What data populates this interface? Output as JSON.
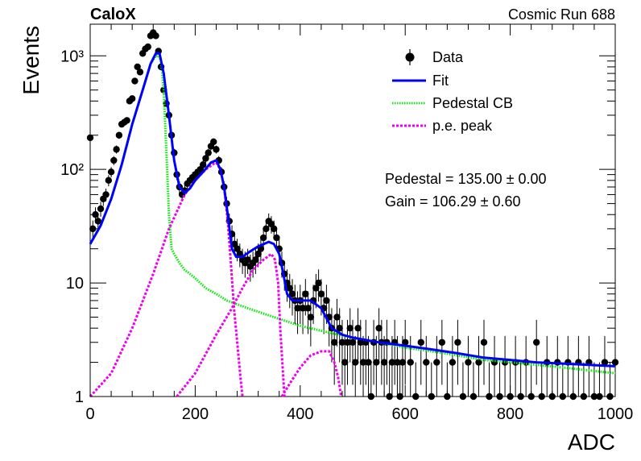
{
  "header": {
    "experiment": "CaloX",
    "run": "Cosmic Run 688"
  },
  "stats": {
    "pedestal": "Pedestal = 135.00 ± 0.00",
    "gain": "Gain = 106.29 ± 0.60"
  },
  "colors": {
    "data": "#000000",
    "fit": "#0000ff",
    "pedestal": "#00ee00",
    "pe": "#ee00ee"
  },
  "chart_data": {
    "type": "scatter",
    "xlabel": "ADC",
    "ylabel": "Events",
    "xlim": [
      0,
      1000
    ],
    "ylim": [
      1,
      1900
    ],
    "yscale": "log",
    "grid": false,
    "legend_position": "top-right",
    "x_ticks": [
      0,
      200,
      400,
      600,
      800,
      1000
    ],
    "y_ticks": [
      {
        "value": 1,
        "label": "1"
      },
      {
        "value": 10,
        "label": "10"
      },
      {
        "value": 100,
        "label": "10²"
      },
      {
        "value": 1000,
        "label": "10³"
      }
    ],
    "series": [
      {
        "name": "Data",
        "kind": "points-with-errors",
        "points": [
          [
            0,
            190
          ],
          [
            5,
            30
          ],
          [
            10,
            40
          ],
          [
            15,
            35
          ],
          [
            20,
            45
          ],
          [
            25,
            55
          ],
          [
            30,
            60
          ],
          [
            35,
            80
          ],
          [
            40,
            95
          ],
          [
            45,
            120
          ],
          [
            50,
            150
          ],
          [
            55,
            200
          ],
          [
            60,
            250
          ],
          [
            65,
            260
          ],
          [
            70,
            270
          ],
          [
            75,
            400
          ],
          [
            80,
            420
          ],
          [
            85,
            600
          ],
          [
            90,
            800
          ],
          [
            95,
            720
          ],
          [
            100,
            1050
          ],
          [
            105,
            1150
          ],
          [
            110,
            1200
          ],
          [
            115,
            1500
          ],
          [
            120,
            1600
          ],
          [
            125,
            1500
          ],
          [
            130,
            1100
          ],
          [
            135,
            800
          ],
          [
            140,
            500
          ],
          [
            145,
            380
          ],
          [
            150,
            300
          ],
          [
            155,
            200
          ],
          [
            160,
            140
          ],
          [
            165,
            90
          ],
          [
            170,
            70
          ],
          [
            175,
            60
          ],
          [
            180,
            65
          ],
          [
            185,
            75
          ],
          [
            190,
            80
          ],
          [
            195,
            85
          ],
          [
            200,
            90
          ],
          [
            205,
            95
          ],
          [
            210,
            100
          ],
          [
            215,
            110
          ],
          [
            220,
            125
          ],
          [
            225,
            140
          ],
          [
            230,
            160
          ],
          [
            235,
            175
          ],
          [
            240,
            150
          ],
          [
            245,
            120
          ],
          [
            250,
            95
          ],
          [
            255,
            70
          ],
          [
            260,
            50
          ],
          [
            265,
            35
          ],
          [
            270,
            27
          ],
          [
            275,
            22
          ],
          [
            280,
            20
          ],
          [
            285,
            18
          ],
          [
            290,
            16
          ],
          [
            295,
            15
          ],
          [
            300,
            16
          ],
          [
            305,
            14
          ],
          [
            310,
            15
          ],
          [
            315,
            16
          ],
          [
            320,
            18
          ],
          [
            325,
            20
          ],
          [
            330,
            25
          ],
          [
            335,
            30
          ],
          [
            340,
            35
          ],
          [
            345,
            33
          ],
          [
            350,
            30
          ],
          [
            355,
            25
          ],
          [
            360,
            20
          ],
          [
            365,
            15
          ],
          [
            370,
            12
          ],
          [
            375,
            10
          ],
          [
            380,
            9
          ],
          [
            385,
            8
          ],
          [
            390,
            7
          ],
          [
            395,
            6
          ],
          [
            400,
            7
          ],
          [
            405,
            6
          ],
          [
            410,
            8
          ],
          [
            415,
            6
          ],
          [
            420,
            5
          ],
          [
            425,
            7
          ],
          [
            430,
            9
          ],
          [
            435,
            10
          ],
          [
            440,
            8
          ],
          [
            445,
            6
          ],
          [
            450,
            7
          ],
          [
            455,
            5
          ],
          [
            460,
            4
          ],
          [
            465,
            3
          ],
          [
            470,
            5
          ],
          [
            475,
            4
          ],
          [
            480,
            3
          ],
          [
            485,
            2
          ],
          [
            490,
            3
          ],
          [
            495,
            4
          ],
          [
            500,
            3
          ],
          [
            505,
            2
          ],
          [
            510,
            4
          ],
          [
            515,
            3
          ],
          [
            520,
            2
          ],
          [
            525,
            3
          ],
          [
            530,
            2
          ],
          [
            535,
            1
          ],
          [
            540,
            3
          ],
          [
            545,
            2
          ],
          [
            550,
            4
          ],
          [
            555,
            3
          ],
          [
            560,
            2
          ],
          [
            565,
            3
          ],
          [
            570,
            1
          ],
          [
            575,
            2
          ],
          [
            580,
            3
          ],
          [
            585,
            2
          ],
          [
            590,
            1
          ],
          [
            595,
            2
          ],
          [
            600,
            3
          ],
          [
            610,
            2
          ],
          [
            620,
            1
          ],
          [
            630,
            3
          ],
          [
            640,
            2
          ],
          [
            650,
            1
          ],
          [
            660,
            2
          ],
          [
            670,
            3
          ],
          [
            680,
            1
          ],
          [
            690,
            2
          ],
          [
            700,
            3
          ],
          [
            710,
            1
          ],
          [
            720,
            2
          ],
          [
            730,
            1
          ],
          [
            740,
            2
          ],
          [
            750,
            3
          ],
          [
            760,
            1
          ],
          [
            770,
            2
          ],
          [
            780,
            1
          ],
          [
            790,
            2
          ],
          [
            800,
            1
          ],
          [
            810,
            2
          ],
          [
            820,
            1
          ],
          [
            830,
            2
          ],
          [
            840,
            1
          ],
          [
            850,
            3
          ],
          [
            860,
            1
          ],
          [
            870,
            2
          ],
          [
            880,
            1
          ],
          [
            890,
            2
          ],
          [
            900,
            1
          ],
          [
            910,
            2
          ],
          [
            920,
            1
          ],
          [
            930,
            2
          ],
          [
            940,
            1
          ],
          [
            950,
            2
          ],
          [
            960,
            1
          ],
          [
            970,
            1
          ],
          [
            980,
            2
          ],
          [
            990,
            1
          ],
          [
            1000,
            2
          ]
        ]
      },
      {
        "name": "Fit",
        "kind": "line",
        "style": "solid",
        "points": [
          [
            0,
            22
          ],
          [
            20,
            32
          ],
          [
            40,
            55
          ],
          [
            60,
            110
          ],
          [
            80,
            250
          ],
          [
            100,
            500
          ],
          [
            115,
            850
          ],
          [
            125,
            1050
          ],
          [
            132,
            1050
          ],
          [
            140,
            700
          ],
          [
            150,
            300
          ],
          [
            160,
            120
          ],
          [
            170,
            70
          ],
          [
            180,
            62
          ],
          [
            190,
            68
          ],
          [
            200,
            80
          ],
          [
            215,
            95
          ],
          [
            230,
            115
          ],
          [
            240,
            120
          ],
          [
            248,
            100
          ],
          [
            255,
            70
          ],
          [
            262,
            40
          ],
          [
            270,
            20
          ],
          [
            278,
            17
          ],
          [
            290,
            17
          ],
          [
            305,
            19
          ],
          [
            320,
            21
          ],
          [
            340,
            23
          ],
          [
            350,
            22
          ],
          [
            360,
            18
          ],
          [
            368,
            12
          ],
          [
            375,
            8
          ],
          [
            385,
            7
          ],
          [
            400,
            7
          ],
          [
            420,
            7
          ],
          [
            440,
            6
          ],
          [
            460,
            4
          ],
          [
            480,
            3.5
          ],
          [
            500,
            3.3
          ],
          [
            550,
            3.0
          ],
          [
            600,
            2.8
          ],
          [
            650,
            2.6
          ],
          [
            700,
            2.4
          ],
          [
            750,
            2.2
          ],
          [
            800,
            2.1
          ],
          [
            850,
            2.0
          ],
          [
            900,
            1.95
          ],
          [
            950,
            1.9
          ],
          [
            1000,
            1.85
          ]
        ]
      },
      {
        "name": "Pedestal CB",
        "kind": "line",
        "style": "dotted",
        "points": [
          [
            0,
            22
          ],
          [
            20,
            32
          ],
          [
            40,
            55
          ],
          [
            60,
            110
          ],
          [
            80,
            250
          ],
          [
            100,
            500
          ],
          [
            115,
            850
          ],
          [
            125,
            1000
          ],
          [
            130,
            1000
          ],
          [
            135,
            900
          ],
          [
            140,
            500
          ],
          [
            145,
            150
          ],
          [
            150,
            40
          ],
          [
            155,
            20
          ],
          [
            160,
            18
          ],
          [
            170,
            15
          ],
          [
            180,
            13
          ],
          [
            190,
            12
          ],
          [
            200,
            11
          ],
          [
            220,
            9
          ],
          [
            240,
            8
          ],
          [
            260,
            7
          ],
          [
            280,
            6.5
          ],
          [
            300,
            6
          ],
          [
            350,
            5
          ],
          [
            400,
            4.2
          ],
          [
            450,
            3.7
          ],
          [
            500,
            3.3
          ],
          [
            550,
            3.0
          ],
          [
            600,
            2.7
          ],
          [
            650,
            2.5
          ],
          [
            700,
            2.3
          ],
          [
            750,
            2.1
          ],
          [
            800,
            2.0
          ],
          [
            850,
            1.9
          ],
          [
            900,
            1.8
          ],
          [
            950,
            1.7
          ],
          [
            1000,
            1.6
          ]
        ]
      },
      {
        "name": "p.e. peak",
        "kind": "line",
        "style": "dotted",
        "curves": [
          [
            [
              0,
              1
            ],
            [
              40,
              1.6
            ],
            [
              80,
              4
            ],
            [
              120,
              12
            ],
            [
              150,
              30
            ],
            [
              180,
              60
            ],
            [
              200,
              80
            ],
            [
              220,
              100
            ],
            [
              235,
              112
            ],
            [
              240,
              115
            ],
            [
              248,
              100
            ],
            [
              255,
              70
            ],
            [
              262,
              35
            ],
            [
              268,
              15
            ],
            [
              274,
              6
            ],
            [
              280,
              3
            ],
            [
              286,
              1.5
            ],
            [
              290,
              1
            ]
          ],
          [
            [
              165,
              1
            ],
            [
              200,
              1.6
            ],
            [
              240,
              3.5
            ],
            [
              270,
              6
            ],
            [
              290,
              9
            ],
            [
              310,
              13
            ],
            [
              330,
              16
            ],
            [
              345,
              18
            ],
            [
              352,
              16
            ],
            [
              358,
              10
            ],
            [
              362,
              4
            ],
            [
              366,
              2
            ],
            [
              370,
              1
            ]
          ],
          [
            [
              365,
              1
            ],
            [
              380,
              1.3
            ],
            [
              400,
              1.8
            ],
            [
              420,
              2.3
            ],
            [
              440,
              2.5
            ],
            [
              455,
              2.5
            ],
            [
              465,
              2.0
            ],
            [
              472,
              1.5
            ],
            [
              478,
              1
            ]
          ]
        ]
      }
    ]
  }
}
